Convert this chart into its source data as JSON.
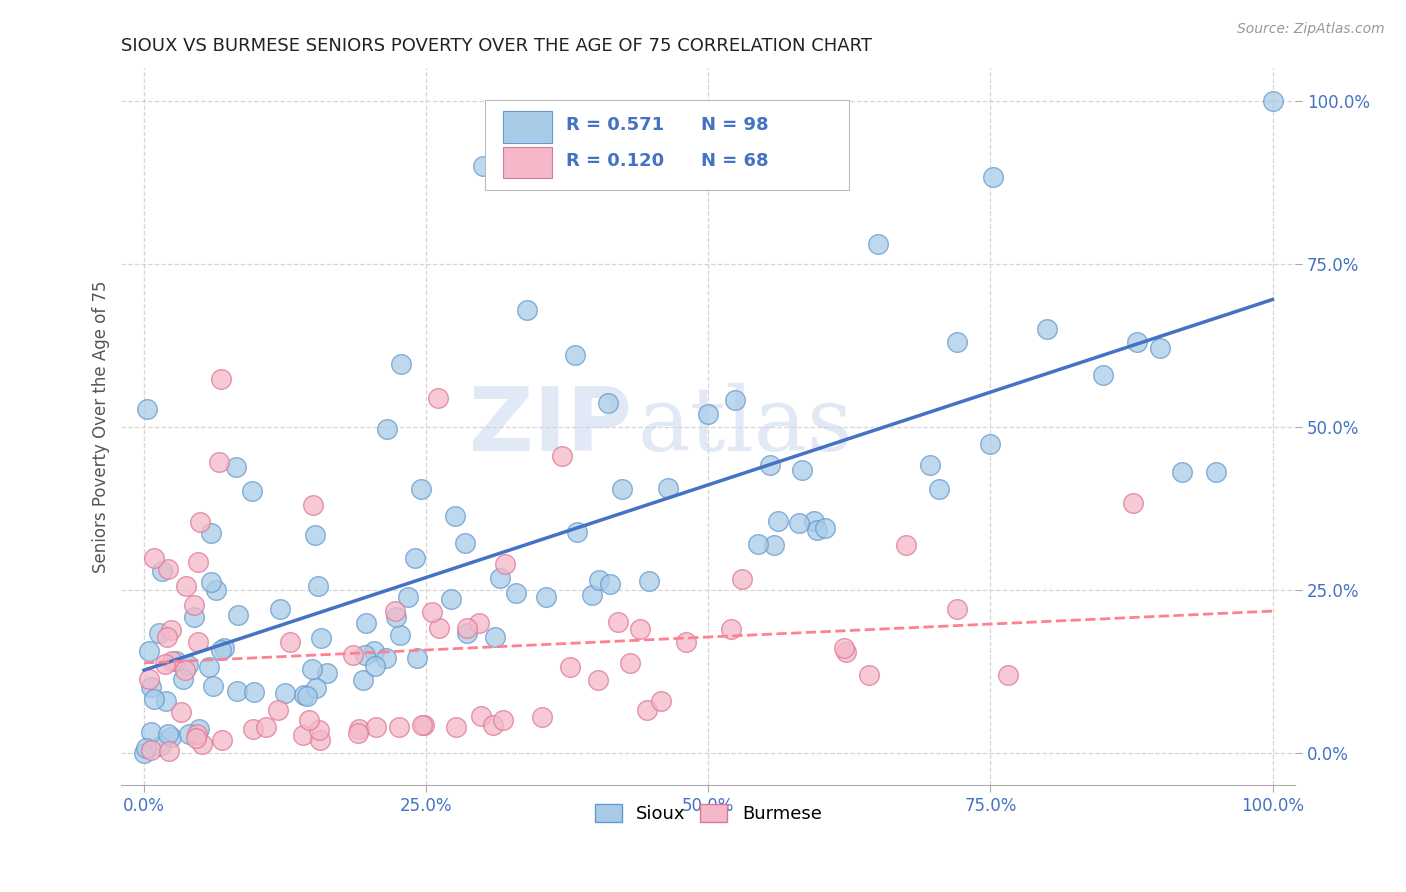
{
  "title": "SIOUX VS BURMESE SENIORS POVERTY OVER THE AGE OF 75 CORRELATION CHART",
  "source": "Source: ZipAtlas.com",
  "ylabel": "Seniors Poverty Over the Age of 75",
  "xlabel": "",
  "xlim": [
    -0.02,
    1.02
  ],
  "ylim": [
    -0.05,
    1.05
  ],
  "xticks": [
    0.0,
    0.25,
    0.5,
    0.75,
    1.0
  ],
  "yticks": [
    0.0,
    0.25,
    0.5,
    0.75,
    1.0
  ],
  "xticklabels": [
    "0.0%",
    "25.0%",
    "50.0%",
    "75.0%",
    "100.0%"
  ],
  "yticklabels": [
    "0.0%",
    "25.0%",
    "50.0%",
    "75.0%",
    "100.0%"
  ],
  "sioux_color": "#A8CCE8",
  "burmese_color": "#F4B8C8",
  "sioux_edge": "#6699CC",
  "burmese_edge": "#DD7799",
  "sioux_line_color": "#4472C4",
  "burmese_line_color": "#FF8090",
  "sioux_R": 0.571,
  "sioux_N": 98,
  "burmese_R": 0.12,
  "burmese_N": 68,
  "watermark_zip": "ZIP",
  "watermark_atlas": "atlas",
  "background_color": "#FFFFFF",
  "grid_color": "#CCCCCC",
  "legend_text_color": "#4472C4",
  "tick_label_color": "#4472C4"
}
